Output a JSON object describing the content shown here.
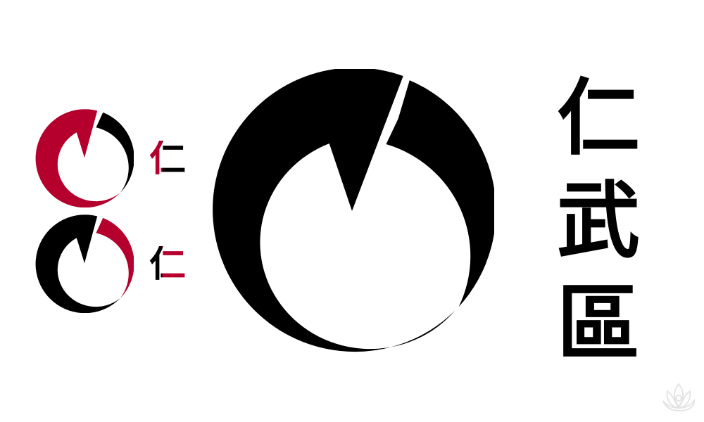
{
  "colors": {
    "red": "#b5002e",
    "black": "#000000",
    "white": "#ffffff",
    "watermark": "#e9e9e9"
  },
  "emblem_variants": [
    {
      "name": "red-variant",
      "arc_color": "#b5002e",
      "crescent_color": "#000000"
    },
    {
      "name": "black-variant",
      "arc_color": "#000000",
      "crescent_color": "#b5002e"
    },
    {
      "name": "large-variant",
      "arc_color": "#000000",
      "crescent_color": "#000000"
    }
  ],
  "small_glyph": "仁",
  "title_chars": [
    "仁",
    "武",
    "區"
  ],
  "watermark_icon": "lotus-watermark-icon"
}
